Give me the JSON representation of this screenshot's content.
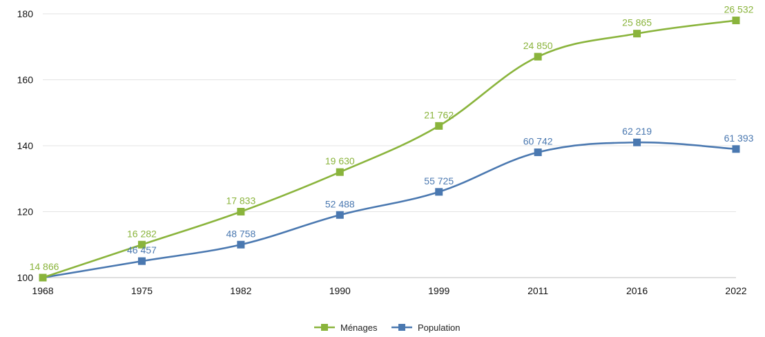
{
  "chart_data": {
    "type": "line",
    "categories": [
      "1968",
      "1975",
      "1982",
      "1990",
      "1999",
      "2011",
      "2016",
      "2022"
    ],
    "ylim": [
      100,
      180
    ],
    "yticks": [
      100,
      120,
      140,
      160,
      180
    ],
    "grid": true,
    "legend_position": "bottom-center",
    "series": [
      {
        "name": "Ménages",
        "color": "#8ab43c",
        "values": [
          100,
          110,
          120,
          132,
          146,
          167,
          174,
          178
        ],
        "labels": [
          "14 866",
          "16 282",
          "17 833",
          "19 630",
          "21 762",
          "24 850",
          "25 865",
          "26 532"
        ]
      },
      {
        "name": "Population",
        "color": "#4a78b0",
        "values": [
          100,
          105,
          110,
          119,
          126,
          138,
          141,
          139
        ],
        "labels": [
          "",
          "46 457",
          "48 758",
          "52 488",
          "55 725",
          "60 742",
          "62 219",
          "61 393"
        ]
      }
    ]
  }
}
